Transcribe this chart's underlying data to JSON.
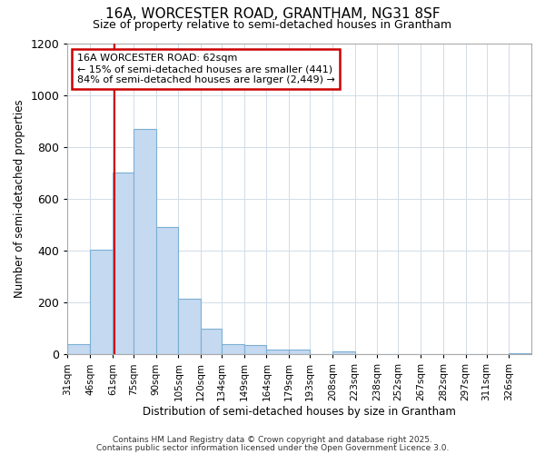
{
  "title1": "16A, WORCESTER ROAD, GRANTHAM, NG31 8SF",
  "title2": "Size of property relative to semi-detached houses in Grantham",
  "xlabel": "Distribution of semi-detached houses by size in Grantham",
  "ylabel": "Number of semi-detached properties",
  "bin_labels": [
    "31sqm",
    "46sqm",
    "61sqm",
    "75sqm",
    "90sqm",
    "105sqm",
    "120sqm",
    "134sqm",
    "149sqm",
    "164sqm",
    "179sqm",
    "193sqm",
    "208sqm",
    "223sqm",
    "238sqm",
    "252sqm",
    "267sqm",
    "282sqm",
    "297sqm",
    "311sqm",
    "326sqm"
  ],
  "bin_edges": [
    31,
    46,
    61,
    75,
    90,
    105,
    120,
    134,
    149,
    164,
    179,
    193,
    208,
    223,
    238,
    252,
    267,
    282,
    297,
    311,
    326
  ],
  "bar_heights": [
    40,
    405,
    700,
    870,
    490,
    215,
    100,
    40,
    35,
    20,
    20,
    0,
    10,
    0,
    0,
    0,
    0,
    0,
    0,
    0,
    5
  ],
  "bar_color": "#c5d9f0",
  "bar_edge_color": "#7bafd4",
  "property_size": 62,
  "annotation_line1": "16A WORCESTER ROAD: 62sqm",
  "annotation_line2": "← 15% of semi-detached houses are smaller (441)",
  "annotation_line3": "84% of semi-detached houses are larger (2,449) →",
  "red_line_color": "#cc0000",
  "annotation_box_color": "#cc0000",
  "ylim": [
    0,
    1200
  ],
  "yticks": [
    0,
    200,
    400,
    600,
    800,
    1000,
    1200
  ],
  "footer1": "Contains HM Land Registry data © Crown copyright and database right 2025.",
  "footer2": "Contains public sector information licensed under the Open Government Licence 3.0.",
  "bg_color": "#ffffff",
  "grid_color": "#d0dce8",
  "title1_fontsize": 11,
  "title2_fontsize": 9
}
